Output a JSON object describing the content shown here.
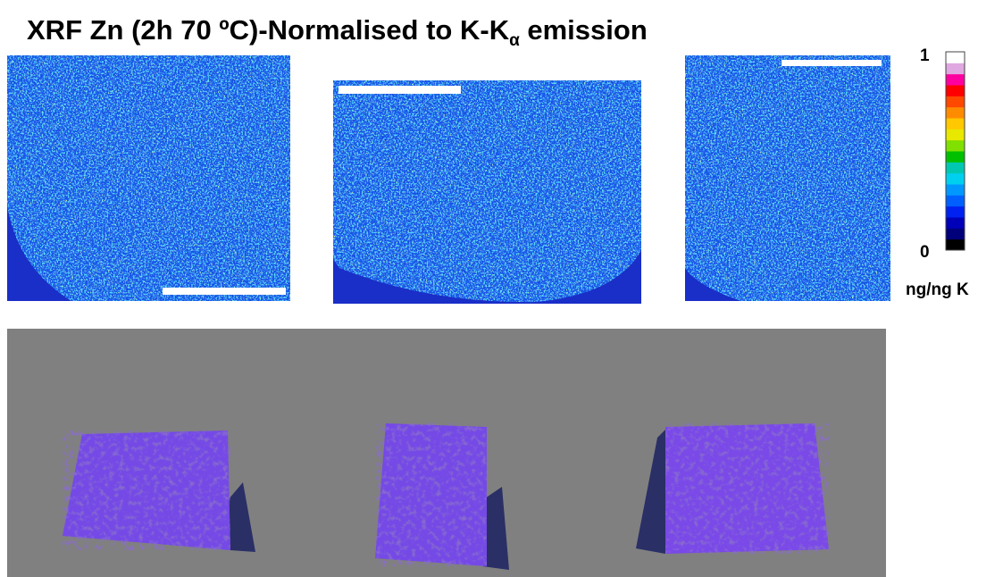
{
  "figure": {
    "title": {
      "main": "XRF Zn (2h 70 ºC)-Normalised to K-K",
      "subscript": "α",
      "tail": " emission"
    },
    "colorbar": {
      "max_label": "1",
      "min_label": "0",
      "unit": "ng/ng K",
      "colors": [
        "#000000",
        "#00007a",
        "#0000b8",
        "#0022f0",
        "#0060ff",
        "#0098ff",
        "#00d0f0",
        "#00c8b0",
        "#00c000",
        "#80e000",
        "#e8e800",
        "#ffc800",
        "#ff8c00",
        "#ff4800",
        "#ff0000",
        "#ff00a0",
        "#e0a8e0",
        "#ffffff"
      ]
    }
  }
}
